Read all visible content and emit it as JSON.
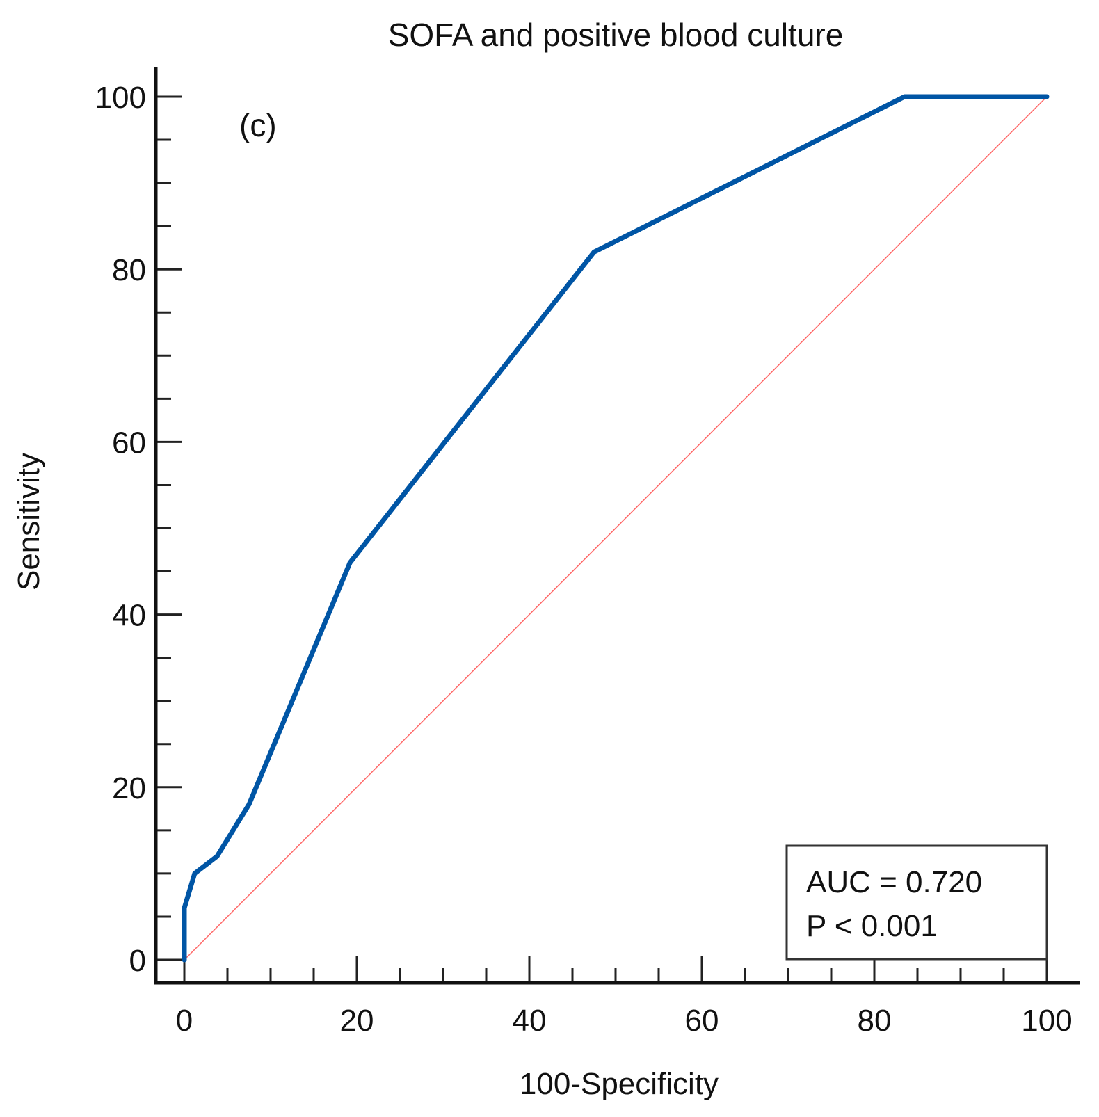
{
  "chart_data": {
    "type": "line",
    "title": "SOFA and positive blood culture",
    "panel_label": "(c)",
    "xlabel": "100-Specificity",
    "ylabel": "Sensitivity",
    "xlim": [
      0,
      100
    ],
    "ylim": [
      0,
      100
    ],
    "xticks": [
      0,
      20,
      40,
      60,
      80,
      100
    ],
    "yticks": [
      0,
      20,
      40,
      60,
      80,
      100
    ],
    "grid": false,
    "series": [
      {
        "color": "#0055a5",
        "x": [
          0,
          0,
          1.2,
          3.8,
          7.5,
          19.2,
          47.5,
          83.5,
          100
        ],
        "y": [
          0,
          6,
          10,
          12,
          18,
          46,
          82,
          100,
          100
        ]
      },
      {
        "color": "#ff6666",
        "x": [
          0,
          100
        ],
        "y": [
          0,
          100
        ]
      }
    ],
    "annotation": {
      "lines": [
        "AUC = 0.720",
        "P < 0.001"
      ],
      "placement": "bottom-right"
    }
  }
}
